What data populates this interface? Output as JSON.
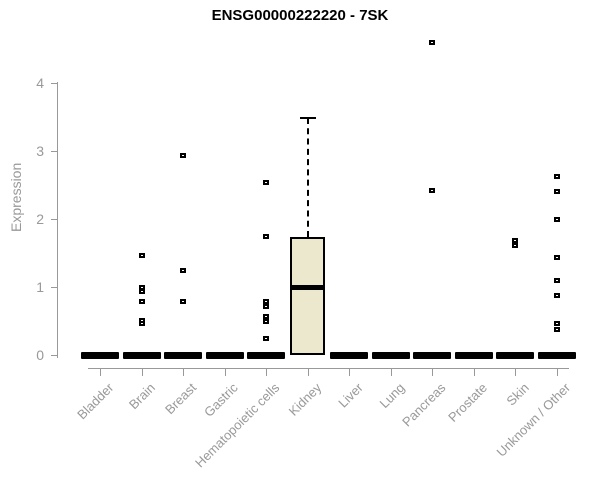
{
  "page": {
    "background": "#ffffff"
  },
  "chart_data": {
    "type": "boxplot",
    "title": "ENSG00000222220 - 7SK",
    "ylabel": "Expression",
    "xlabel": "",
    "yticks": [
      0,
      1,
      2,
      3,
      4
    ],
    "ylim": [
      0,
      4.75
    ],
    "grid": false,
    "legend": "none",
    "colors": {
      "box_fill": "#ece8cd",
      "box_border": "#000000",
      "axis": "#999999",
      "tick_label": "#999999",
      "title": "#000000",
      "outlier": "#000000",
      "background": "#ffffff"
    },
    "marker_style": "open-square",
    "categories": [
      "Bladder",
      "Brain",
      "Breast",
      "Gastric",
      "Hematopoietic cells",
      "Kidney",
      "Liver",
      "Lung",
      "Pancreas",
      "Prostate",
      "Skin",
      "Unknown / Other"
    ],
    "boxes": [
      {
        "category": "Bladder",
        "q1": 0,
        "median": 0,
        "q3": 0,
        "whisker_low": 0,
        "whisker_high": 0,
        "outliers": []
      },
      {
        "category": "Brain",
        "q1": 0,
        "median": 0,
        "q3": 0,
        "whisker_low": 0,
        "whisker_high": 0,
        "outliers": [
          1.47,
          0.99,
          0.93,
          0.79,
          0.51,
          0.47
        ]
      },
      {
        "category": "Breast",
        "q1": 0,
        "median": 0,
        "q3": 0,
        "whisker_low": 0,
        "whisker_high": 0,
        "outliers": [
          2.93,
          1.25,
          0.78
        ]
      },
      {
        "category": "Gastric",
        "q1": 0,
        "median": 0,
        "q3": 0,
        "whisker_low": 0,
        "whisker_high": 0,
        "outliers": []
      },
      {
        "category": "Hematopoietic cells",
        "q1": 0,
        "median": 0,
        "q3": 0,
        "whisker_low": 0,
        "whisker_high": 0,
        "outliers": [
          2.53,
          1.74,
          0.78,
          0.71,
          0.57,
          0.49,
          0.24
        ]
      },
      {
        "category": "Kidney",
        "q1": 0,
        "median": 1.0,
        "q3": 1.73,
        "whisker_low": 0,
        "whisker_high": 3.48,
        "outliers": []
      },
      {
        "category": "Liver",
        "q1": 0,
        "median": 0,
        "q3": 0,
        "whisker_low": 0,
        "whisker_high": 0,
        "outliers": []
      },
      {
        "category": "Lung",
        "q1": 0,
        "median": 0,
        "q3": 0,
        "whisker_low": 0,
        "whisker_high": 0,
        "outliers": []
      },
      {
        "category": "Pancreas",
        "q1": 0,
        "median": 0,
        "q3": 0,
        "whisker_low": 0,
        "whisker_high": 0,
        "outliers": [
          4.6,
          2.42
        ]
      },
      {
        "category": "Prostate",
        "q1": 0,
        "median": 0,
        "q3": 0,
        "whisker_low": 0,
        "whisker_high": 0,
        "outliers": []
      },
      {
        "category": "Skin",
        "q1": 0,
        "median": 0,
        "q3": 0,
        "whisker_low": 0,
        "whisker_high": 0,
        "outliers": [
          1.68,
          1.61
        ]
      },
      {
        "category": "Unknown / Other",
        "q1": 0,
        "median": 0,
        "q3": 0,
        "whisker_low": 0,
        "whisker_high": 0,
        "outliers": [
          2.63,
          2.4,
          2.0,
          1.44,
          1.09,
          0.88,
          0.47,
          0.37
        ]
      }
    ]
  }
}
